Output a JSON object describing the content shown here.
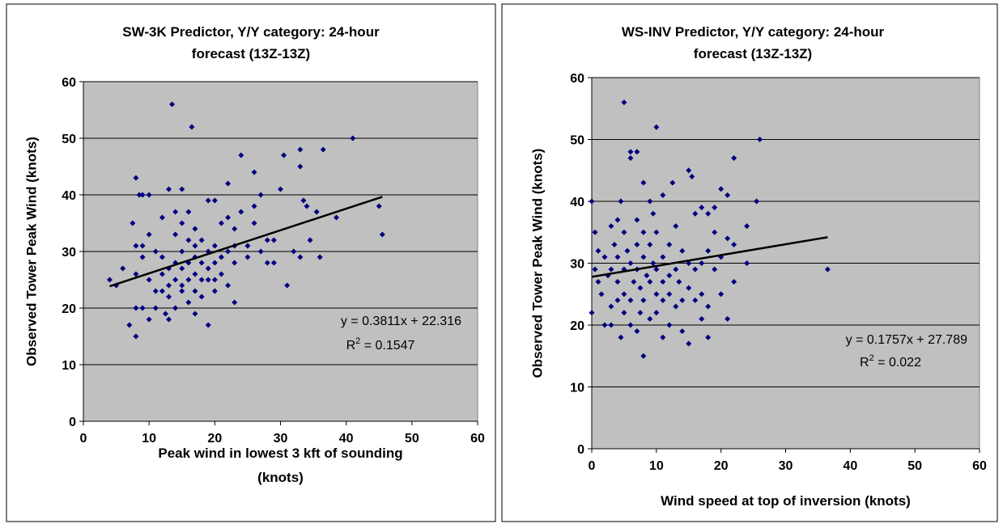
{
  "chart_data": [
    {
      "type": "scatter",
      "title": [
        "SW-3K Predictor, Y/Y category: 24-hour",
        "forecast (13Z-13Z)"
      ],
      "x_label": [
        "Peak wind in lowest 3 kft of sounding",
        "(knots)"
      ],
      "y_label": "Observed Tower Peak Wind (knots)",
      "color": "#000080",
      "background": "#c0c0c0",
      "grid": true,
      "xlim": [
        0,
        60
      ],
      "xticks": [
        0,
        10,
        20,
        30,
        40,
        50,
        60
      ],
      "ylim": [
        0,
        60
      ],
      "yticks": [
        0,
        10,
        20,
        30,
        40,
        50,
        60
      ],
      "x": [
        4,
        5,
        6,
        7,
        7.5,
        8,
        8,
        8,
        8,
        8,
        8.5,
        9,
        9,
        9,
        9,
        10,
        10,
        10,
        10,
        11,
        11,
        11,
        12,
        12,
        12,
        12,
        12.5,
        13,
        13,
        13,
        13,
        13,
        13.5,
        14,
        14,
        14,
        14,
        14,
        15,
        15,
        15,
        15,
        15,
        15,
        16,
        16,
        16,
        16,
        16,
        16.5,
        17,
        17,
        17,
        17,
        17,
        17,
        18,
        18,
        18,
        18,
        19,
        19,
        19,
        19,
        19,
        20,
        20,
        20,
        20,
        20,
        21,
        21,
        21,
        22,
        22,
        22,
        22,
        23,
        23,
        23,
        23,
        24,
        24,
        25,
        25,
        26,
        26,
        26,
        27,
        27,
        28,
        28,
        29,
        29,
        30,
        30.5,
        31,
        32,
        33,
        33,
        33,
        33.5,
        34,
        34.5,
        35.5,
        36,
        36.5,
        38.5,
        41,
        45,
        45.5
      ],
      "values": [
        25,
        24,
        27,
        17,
        35,
        43,
        31,
        26,
        20,
        15,
        40,
        40,
        31,
        29,
        20,
        40,
        33,
        25,
        18,
        30,
        23,
        20,
        36,
        29,
        26,
        23,
        19,
        41,
        27,
        24,
        22,
        18,
        56,
        37,
        33,
        28,
        25,
        20,
        41,
        35,
        30,
        27,
        24,
        23,
        37,
        32,
        28,
        25,
        21,
        52,
        34,
        31,
        29,
        26,
        23,
        19,
        32,
        28,
        25,
        22,
        39,
        30,
        27,
        25,
        17,
        39,
        31,
        28,
        25,
        23,
        35,
        29,
        26,
        42,
        36,
        30,
        24,
        34,
        31,
        28,
        21,
        47,
        37,
        31,
        29,
        44,
        38,
        35,
        40,
        30,
        32,
        28,
        32,
        28,
        41,
        47,
        24,
        30,
        48,
        45,
        29,
        39,
        38,
        32,
        37,
        29,
        48,
        36,
        50,
        38,
        33
      ],
      "trendline": {
        "slope": 0.3811,
        "intercept": 22.316,
        "equation": "y = 0.3811x + 22.316",
        "r_squared": {
          "base": "R",
          "sup": "2",
          "rest": " = 0.1547"
        }
      }
    },
    {
      "type": "scatter",
      "title": [
        "WS-INV Predictor, Y/Y category: 24-hour",
        "forecast (13Z-13Z)"
      ],
      "x_label": [
        "Wind speed at top of inversion (knots)"
      ],
      "y_label": "Observed Tower Peak Wind (knots)",
      "color": "#000080",
      "background": "#c0c0c0",
      "grid": true,
      "xlim": [
        0,
        60
      ],
      "xticks": [
        0,
        10,
        20,
        30,
        40,
        50,
        60
      ],
      "ylim": [
        0,
        60
      ],
      "yticks": [
        0,
        10,
        20,
        30,
        40,
        50,
        60
      ],
      "x": [
        0,
        0,
        0.5,
        0.5,
        1,
        1,
        1.5,
        2,
        2,
        2.5,
        3,
        3,
        3,
        3,
        3.5,
        4,
        4,
        4,
        4,
        4.5,
        4.5,
        5,
        5,
        5,
        5,
        5,
        5.5,
        6,
        6,
        6,
        6,
        6,
        6.5,
        7,
        7,
        7,
        7,
        7,
        7.5,
        7.5,
        8,
        8,
        8,
        8,
        8,
        8.5,
        9,
        9,
        9,
        9,
        9.5,
        9.5,
        10,
        10,
        10,
        10,
        10,
        11,
        11,
        11,
        11,
        11,
        12,
        12,
        12,
        12,
        12.5,
        13,
        13,
        13,
        13.5,
        14,
        14,
        14,
        15,
        15,
        15,
        15,
        15.5,
        16,
        16,
        16,
        17,
        17,
        17,
        17,
        18,
        18,
        18,
        18,
        19,
        19,
        19,
        20,
        20,
        20,
        21,
        21,
        21,
        22,
        22,
        22,
        24,
        24,
        25.5,
        26,
        36.5
      ],
      "values": [
        40,
        22,
        35,
        29,
        27,
        32,
        25,
        31,
        20,
        28,
        36,
        29,
        23,
        20,
        33,
        37,
        31,
        27,
        24,
        40,
        18,
        56,
        35,
        29,
        25,
        22,
        32,
        48,
        47,
        30,
        24,
        20,
        27,
        48,
        37,
        33,
        29,
        19,
        26,
        22,
        43,
        35,
        31,
        24,
        15,
        28,
        40,
        33,
        27,
        21,
        38,
        30,
        52,
        35,
        29,
        25,
        22,
        41,
        31,
        27,
        24,
        18,
        33,
        28,
        25,
        20,
        43,
        36,
        29,
        23,
        27,
        32,
        24,
        19,
        45,
        30,
        26,
        17,
        44,
        38,
        29,
        24,
        39,
        30,
        25,
        21,
        38,
        32,
        23,
        18,
        39,
        35,
        29,
        42,
        31,
        25,
        41,
        34,
        21,
        47,
        33,
        27,
        36,
        30,
        40,
        50,
        29
      ],
      "trendline": {
        "slope": 0.1757,
        "intercept": 27.789,
        "equation": "y = 0.1757x + 27.789",
        "r_squared": {
          "base": "R",
          "sup": "2",
          "rest": " = 0.022"
        }
      }
    }
  ]
}
